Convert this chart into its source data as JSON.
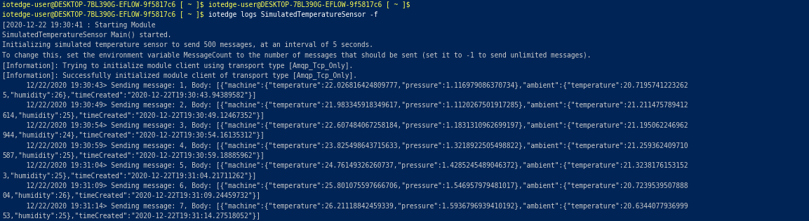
{
  "bg_color": "#012456",
  "prompt_color": "#FFFF54",
  "white_color": "#CCCCCC",
  "font_size": 6.9,
  "figsize": [
    11.53,
    3.15
  ],
  "dpi": 100,
  "lines": [
    {
      "segments": [
        {
          "text": "iotedge-user@DESKTOP-7BL390G-EFLOW-9f5817c6 [ ~ ]$ ",
          "color": "#FFFF54"
        },
        {
          "text": "iotedge-user@DESKTOP-7BL390G-EFLOW-9f5817c6 [ ~ ]$",
          "color": "#FFFF54"
        }
      ]
    },
    {
      "segments": [
        {
          "text": "iotedge-user@DESKTOP-7BL390G-EFLOW-9f5817c6 [ ~ ]$ ",
          "color": "#FFFF54"
        },
        {
          "text": "iotedge logs SimulatedTemperatureSensor -f",
          "color": "#FFFFFF"
        }
      ]
    },
    {
      "segments": [
        {
          "text": "[2020-12-22 19:30:41 : Starting Module",
          "color": "#CCCCCC"
        }
      ]
    },
    {
      "segments": [
        {
          "text": "SimulatedTemperatureSensor Main() started.",
          "color": "#CCCCCC"
        }
      ]
    },
    {
      "segments": [
        {
          "text": "Initializing simulated temperature sensor to send 500 messages, at an interval of 5 seconds.",
          "color": "#CCCCCC"
        }
      ]
    },
    {
      "segments": [
        {
          "text": "To change this, set the environment variable MessageCount to the number of messages that should be sent (set it to -1 to send unlimited messages).",
          "color": "#CCCCCC"
        }
      ]
    },
    {
      "segments": [
        {
          "text": "[Information]: Trying to initialize module client using transport type [Amqp_Tcp_Only].",
          "color": "#CCCCCC"
        }
      ]
    },
    {
      "segments": [
        {
          "text": "[Information]: Successfully initialized module client of transport type [Amqp_Tcp_Only].",
          "color": "#CCCCCC"
        }
      ]
    },
    {
      "segments": [
        {
          "text": "      12/22/2020 19:30:43> Sending message: 1, Body: [{\"machine\":{\"temperature\":22.026816424809777,\"pressure\":1.116979086370734},\"ambient\":{\"temperature\":20.7195741223262",
          "color": "#CCCCCC"
        }
      ]
    },
    {
      "segments": [
        {
          "text": "5,\"humidity\":26},\"timeCreated\":\"2020-12-22T19:30:43.94389582\"}]",
          "color": "#CCCCCC"
        }
      ]
    },
    {
      "segments": [
        {
          "text": "      12/22/2020 19:30:49> Sending message: 2, Body: [{\"machine\":{\"temperature\":21.983345918349617,\"pressure\":1.1120267501917285},\"ambient\":{\"temperature\":21.211475789412",
          "color": "#CCCCCC"
        }
      ]
    },
    {
      "segments": [
        {
          "text": "614,\"humidity\":25},\"timeCreated\":\"2020-12-22T19:30:49.12467352\"}]",
          "color": "#CCCCCC"
        }
      ]
    },
    {
      "segments": [
        {
          "text": "      12/22/2020 19:30:54> Sending message: 3, Body: [{\"machine\":{\"temperature\":22.607484067258184,\"pressure\":1.1831310962699197},\"ambient\":{\"temperature\":21.195062246962",
          "color": "#CCCCCC"
        }
      ]
    },
    {
      "segments": [
        {
          "text": "944,\"humidity\":24},\"timeCreated\":\"2020-12-22T19:30:54.16135312\"}]",
          "color": "#CCCCCC"
        }
      ]
    },
    {
      "segments": [
        {
          "text": "      12/22/2020 19:30:59> Sending message: 4, Body: [{\"machine\":{\"temperature\":23.825498643715633,\"pressure\":1.3218922505498822},\"ambient\":{\"temperature\":21.259362409710",
          "color": "#CCCCCC"
        }
      ]
    },
    {
      "segments": [
        {
          "text": "587,\"humidity\":25},\"timeCreated\":\"2020-12-22T19:30:59.18885962\"}]",
          "color": "#CCCCCC"
        }
      ]
    },
    {
      "segments": [
        {
          "text": "      12/22/2020 19:31:04> Sending message: 5, Body: [{\"machine\":{\"temperature\":24.76149326260737,\"pressure\":1.4285245489046372},\"ambient\":{\"temperature\":21.3238176153152",
          "color": "#CCCCCC"
        }
      ]
    },
    {
      "segments": [
        {
          "text": "3,\"humidity\":25},\"timeCreated\":\"2020-12-22T19:31:04.21711262\"}]",
          "color": "#CCCCCC"
        }
      ]
    },
    {
      "segments": [
        {
          "text": "      12/22/2020 19:31:09> Sending message: 6, Body: [{\"machine\":{\"temperature\":25.801075597666706,\"pressure\":1.546957979481017},\"ambient\":{\"temperature\":20.7239539507888",
          "color": "#CCCCCC"
        }
      ]
    },
    {
      "segments": [
        {
          "text": "04,\"humidity\":26},\"timeCreated\":\"2020-12-22T19:31:09.24459732\"}]",
          "color": "#CCCCCC"
        }
      ]
    },
    {
      "segments": [
        {
          "text": "      12/22/2020 19:31:14> Sending message: 7, Body: [{\"machine\":{\"temperature\":26.21118842459339,\"pressure\":1.5936796939410192},\"ambient\":{\"temperature\":20.6344077936999",
          "color": "#CCCCCC"
        }
      ]
    },
    {
      "segments": [
        {
          "text": "53,\"humidity\":25},\"timeCreated\":\"2020-12-22T19:31:14.27518052\"}]",
          "color": "#CCCCCC"
        }
      ]
    }
  ]
}
